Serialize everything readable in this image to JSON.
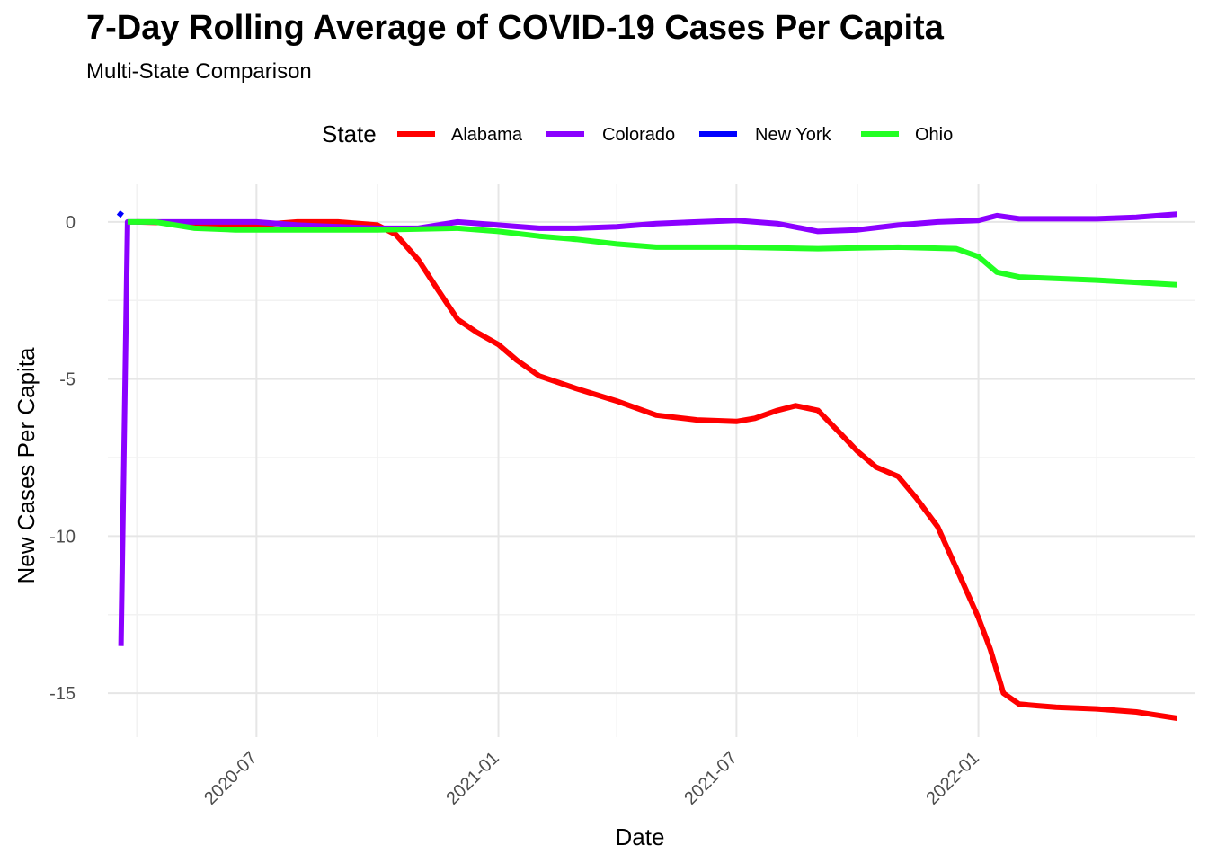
{
  "chart_data": {
    "type": "line",
    "title": "7-Day Rolling Average of COVID-19 Cases Per Capita",
    "subtitle": "Multi-State Comparison",
    "xlabel": "Date",
    "ylabel": "New Cases Per Capita",
    "x_ticks": [
      "2020-07",
      "2021-01",
      "2021-07",
      "2022-01"
    ],
    "xlim": [
      "2020-03-10",
      "2022-06-15"
    ],
    "y_ticks": [
      0,
      -5,
      -10,
      -15
    ],
    "ylim": [
      -16.4,
      1.2
    ],
    "grid": true,
    "legend": {
      "title": "State",
      "position": "top"
    },
    "series": [
      {
        "name": "Alabama",
        "color": "#FF0000",
        "points": [
          [
            "2020-04-01",
            0
          ],
          [
            "2020-07-01",
            -0.1
          ],
          [
            "2020-08-01",
            0
          ],
          [
            "2020-09-01",
            0
          ],
          [
            "2020-10-01",
            -0.1
          ],
          [
            "2020-10-15",
            -0.4
          ],
          [
            "2020-11-01",
            -1.2
          ],
          [
            "2020-11-15",
            -2.1
          ],
          [
            "2020-12-01",
            -3.1
          ],
          [
            "2020-12-15",
            -3.5
          ],
          [
            "2021-01-01",
            -3.9
          ],
          [
            "2021-01-15",
            -4.4
          ],
          [
            "2021-02-01",
            -4.9
          ],
          [
            "2021-03-01",
            -5.3
          ],
          [
            "2021-04-01",
            -5.7
          ],
          [
            "2021-05-01",
            -6.15
          ],
          [
            "2021-06-01",
            -6.3
          ],
          [
            "2021-07-01",
            -6.35
          ],
          [
            "2021-07-15",
            -6.25
          ],
          [
            "2021-08-01",
            -6.0
          ],
          [
            "2021-08-15",
            -5.85
          ],
          [
            "2021-09-01",
            -6.0
          ],
          [
            "2021-09-15",
            -6.6
          ],
          [
            "2021-10-01",
            -7.3
          ],
          [
            "2021-10-15",
            -7.8
          ],
          [
            "2021-11-01",
            -8.1
          ],
          [
            "2021-11-15",
            -8.8
          ],
          [
            "2021-12-01",
            -9.7
          ],
          [
            "2021-12-15",
            -11.0
          ],
          [
            "2022-01-01",
            -12.6
          ],
          [
            "2022-01-10",
            -13.6
          ],
          [
            "2022-01-20",
            -15.0
          ],
          [
            "2022-02-01",
            -15.35
          ],
          [
            "2022-02-15",
            -15.4
          ],
          [
            "2022-03-01",
            -15.45
          ],
          [
            "2022-04-01",
            -15.5
          ],
          [
            "2022-05-01",
            -15.6
          ],
          [
            "2022-06-01",
            -15.8
          ]
        ]
      },
      {
        "name": "Colorado",
        "color": "#8B00FF",
        "points": [
          [
            "2020-03-20",
            -13.5
          ],
          [
            "2020-03-25",
            0
          ],
          [
            "2020-06-01",
            0
          ],
          [
            "2020-07-01",
            0
          ],
          [
            "2020-08-01",
            -0.1
          ],
          [
            "2020-09-01",
            -0.15
          ],
          [
            "2020-10-01",
            -0.2
          ],
          [
            "2020-11-01",
            -0.2
          ],
          [
            "2020-12-01",
            0
          ],
          [
            "2021-01-01",
            -0.1
          ],
          [
            "2021-02-01",
            -0.2
          ],
          [
            "2021-03-01",
            -0.2
          ],
          [
            "2021-04-01",
            -0.15
          ],
          [
            "2021-05-01",
            -0.05
          ],
          [
            "2021-06-01",
            0
          ],
          [
            "2021-07-01",
            0.05
          ],
          [
            "2021-08-01",
            -0.05
          ],
          [
            "2021-09-01",
            -0.3
          ],
          [
            "2021-10-01",
            -0.25
          ],
          [
            "2021-11-01",
            -0.1
          ],
          [
            "2021-12-01",
            0
          ],
          [
            "2022-01-01",
            0.05
          ],
          [
            "2022-01-15",
            0.2
          ],
          [
            "2022-02-01",
            0.1
          ],
          [
            "2022-03-01",
            0.1
          ],
          [
            "2022-04-01",
            0.1
          ],
          [
            "2022-05-01",
            0.15
          ],
          [
            "2022-06-01",
            0.25
          ]
        ]
      },
      {
        "name": "New York",
        "color": "#0000FF",
        "points": [
          [
            "2020-03-18",
            0.3
          ],
          [
            "2020-03-21",
            0.2
          ]
        ]
      },
      {
        "name": "Ohio",
        "color": "#22FF22",
        "points": [
          [
            "2020-03-25",
            0
          ],
          [
            "2020-04-15",
            0
          ],
          [
            "2020-05-15",
            -0.2
          ],
          [
            "2020-06-15",
            -0.25
          ],
          [
            "2020-08-01",
            -0.25
          ],
          [
            "2020-10-01",
            -0.25
          ],
          [
            "2020-12-01",
            -0.2
          ],
          [
            "2021-01-01",
            -0.3
          ],
          [
            "2021-02-01",
            -0.45
          ],
          [
            "2021-03-01",
            -0.55
          ],
          [
            "2021-04-01",
            -0.7
          ],
          [
            "2021-05-01",
            -0.8
          ],
          [
            "2021-07-01",
            -0.8
          ],
          [
            "2021-09-01",
            -0.85
          ],
          [
            "2021-11-01",
            -0.8
          ],
          [
            "2021-12-15",
            -0.85
          ],
          [
            "2022-01-01",
            -1.1
          ],
          [
            "2022-01-15",
            -1.6
          ],
          [
            "2022-02-01",
            -1.75
          ],
          [
            "2022-04-01",
            -1.85
          ],
          [
            "2022-06-01",
            -2.0
          ]
        ]
      }
    ]
  }
}
